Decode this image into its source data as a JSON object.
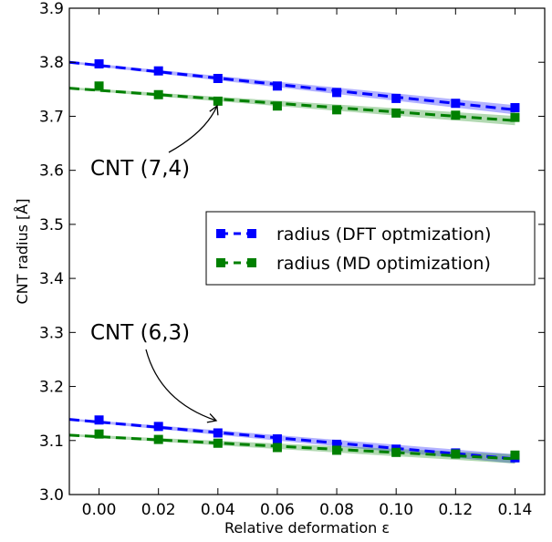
{
  "chart_data": {
    "type": "scatter",
    "title": "",
    "xlabel": "Relative deformation ε",
    "ylabel": "CNT radius [Å]",
    "xlim": [
      -0.01,
      0.15
    ],
    "ylim": [
      3.0,
      3.9
    ],
    "xticks": [
      "0.00",
      "0.02",
      "0.04",
      "0.06",
      "0.08",
      "0.10",
      "0.12",
      "0.14"
    ],
    "yticks": [
      "3.0",
      "3.1",
      "3.2",
      "3.3",
      "3.4",
      "3.5",
      "3.6",
      "3.7",
      "3.8",
      "3.9"
    ],
    "x": [
      0.0,
      0.02,
      0.04,
      0.06,
      0.08,
      0.1,
      0.12,
      0.14
    ],
    "grid": false,
    "legend_position": "center-right",
    "legend": [
      "radius (DFT optmization)",
      "radius (MD optimization)"
    ],
    "groups": [
      {
        "label": "CNT (7,4)",
        "series": [
          {
            "name": "radius (DFT optmization)",
            "color": "#0000ff",
            "values": [
              3.797,
              3.784,
              3.77,
              3.756,
              3.744,
              3.733,
              3.724,
              3.716
            ],
            "fit": [
              3.8,
              3.712
            ]
          },
          {
            "name": "radius (MD optimization)",
            "color": "#008000",
            "values": [
              3.756,
              3.74,
              3.728,
              3.719,
              3.712,
              3.706,
              3.702,
              3.698
            ],
            "fit": [
              3.752,
              3.692
            ]
          }
        ]
      },
      {
        "label": "CNT (6,3)",
        "series": [
          {
            "name": "radius (DFT optmization)",
            "color": "#0000ff",
            "values": [
              3.138,
              3.126,
              3.114,
              3.103,
              3.093,
              3.084,
              3.077,
              3.068
            ],
            "fit": [
              3.139,
              3.066
            ]
          },
          {
            "name": "radius (MD optimization)",
            "color": "#008000",
            "values": [
              3.112,
              3.102,
              3.095,
              3.087,
              3.082,
              3.078,
              3.075,
              3.073
            ],
            "fit": [
              3.11,
              3.066
            ]
          }
        ]
      }
    ]
  }
}
